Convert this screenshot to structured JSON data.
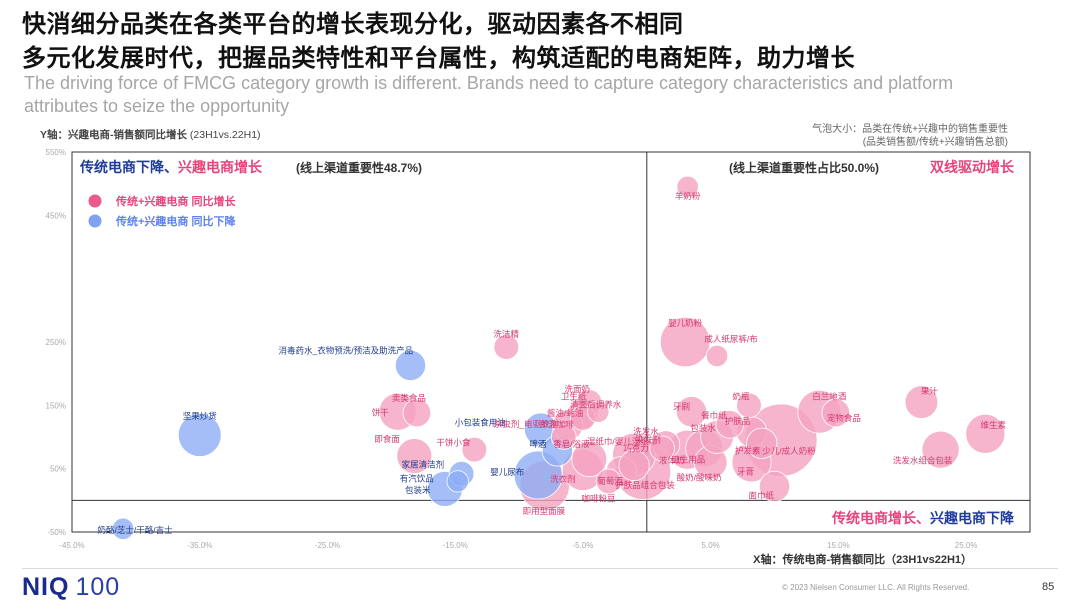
{
  "header": {
    "title_line1": "快消细分品类在各类平台的增长表现分化，驱动因素各不相同",
    "title_line2": "多元化发展时代，把握品类特性和平台属性，构筑适配的电商矩阵，助力增长",
    "subtitle": "The driving force of FMCG category growth is different. Brands need to capture category characteristics and platform attributes to seize the opportunity"
  },
  "chart_notes": {
    "y_axis_bold": "Y轴：兴趣电商-销售额同比增长",
    "y_axis_period": "(23H1vs.22H1)",
    "bubble_size_line1": "气泡大小：品类在传统+兴趣中的销售重要性",
    "bubble_size_line2": "(品类销售额/传统+兴趣销售总额)"
  },
  "footer": {
    "logo_main": "NIQ",
    "logo_num": "100",
    "copyright": "© 2023 Nielsen Consumer LLC. All Rights Reserved.",
    "page_number": "85"
  },
  "colors": {
    "pink": "#f4a3bf",
    "pink_text": "#e8437d",
    "blue": "#8faef5",
    "blue_text": "#1f3c9a",
    "label_pink": "#d6386e",
    "label_blue": "#1f3c88"
  },
  "chart_data": {
    "type": "scatter",
    "title": "",
    "xlabel": "X轴：传统电商-销售额同比（23H1vs22H1）",
    "ylabel": "Y轴：兴趣电商-销售额同比增长（23H1vs.22H1）",
    "xlim": [
      -45,
      30
    ],
    "ylim": [
      -50,
      550
    ],
    "x_ticks": [
      -45,
      -35,
      -25,
      -15,
      -5,
      5,
      15,
      25
    ],
    "x_tick_labels": [
      "-45.0%",
      "-35.0%",
      "-25.0%",
      "-15.0%",
      "-5.0%",
      "5.0%",
      "15.0%",
      "25.0%"
    ],
    "y_ticks": [
      -50,
      50,
      150,
      250,
      450,
      550
    ],
    "y_tick_labels": [
      "-50%",
      "50%",
      "150%",
      "250%",
      "450%",
      "550%"
    ],
    "quadrant_divider": {
      "x": 0,
      "y": 0
    },
    "quadrants": {
      "top_left_blue": "传统电商下降、",
      "top_left_pink": "兴趣电商增长",
      "top_left_note": "(线上渠道重要性48.7%)",
      "top_right_note": "(线上渠道重要性占比50.0%)",
      "top_right_pink": "双线驱动增长",
      "bottom_right_pink": "传统电商增长、",
      "bottom_right_blue": "兴趣电商下降"
    },
    "legend": [
      {
        "name": "传统+兴趣电商 同比增长",
        "color": "pink"
      },
      {
        "name": "传统+兴趣电商 同比下降",
        "color": "blue"
      }
    ],
    "points": [
      {
        "name": "羊奶粉",
        "x": 3.2,
        "y": 495,
        "size": 3,
        "group": "up"
      },
      {
        "name": "婴儿奶粉",
        "x": 3.0,
        "y": 250,
        "size": 16,
        "group": "up"
      },
      {
        "name": "成人纸尿裤/布",
        "x": 5.5,
        "y": 228,
        "size": 3,
        "group": "up"
      },
      {
        "name": "洗洁精",
        "x": -11.0,
        "y": 242,
        "size": 4,
        "group": "up"
      },
      {
        "name": "消毒药水_衣物预洗/预洁及助洗产品",
        "x": -18.5,
        "y": 213,
        "size": 6,
        "group": "down"
      },
      {
        "name": "坚果炒货",
        "x": -35.0,
        "y": 103,
        "size": 12,
        "group": "down"
      },
      {
        "name": "卖类食品",
        "x": -18.0,
        "y": 138,
        "size": 5,
        "group": "up"
      },
      {
        "name": "饼干",
        "x": -19.5,
        "y": 140,
        "size": 9,
        "group": "up"
      },
      {
        "name": "即食面",
        "x": -18.2,
        "y": 70,
        "size": 8,
        "group": "up"
      },
      {
        "name": "干饼小食",
        "x": -13.5,
        "y": 80,
        "size": 4,
        "group": "up"
      },
      {
        "name": "家居清洁剂",
        "x": -14.5,
        "y": 42,
        "size": 4,
        "group": "down"
      },
      {
        "name": "有汽饮品",
        "x": -14.8,
        "y": 30,
        "size": 3,
        "group": "down"
      },
      {
        "name": "包装米",
        "x": -15.8,
        "y": 18,
        "size": 8,
        "group": "down"
      },
      {
        "name": "小包装食用油",
        "x": -8.3,
        "y": 112,
        "size": 7,
        "group": "down"
      },
      {
        "name": "啤酒",
        "x": -7.0,
        "y": 78,
        "size": 6,
        "group": "down"
      },
      {
        "name": "婴儿尿布",
        "x": -8.5,
        "y": 40,
        "size": 15,
        "group": "down"
      },
      {
        "name": "即用型面膜",
        "x": -8.0,
        "y": 23,
        "size": 16,
        "group": "up"
      },
      {
        "name": "洗面奶",
        "x": -4.5,
        "y": 155,
        "size": 4,
        "group": "up"
      },
      {
        "name": "清面后调养水",
        "x": -3.8,
        "y": 140,
        "size": 3,
        "group": "up"
      },
      {
        "name": "酱油/蚝油",
        "x": -5.0,
        "y": 130,
        "size": 4,
        "group": "up"
      },
      {
        "name": "卫生纸",
        "x": -5.0,
        "y": 137,
        "size": 6,
        "group": "up"
      },
      {
        "name": "杀虫剂_电驱蚊剂",
        "x": -6.5,
        "y": 100,
        "size": 4,
        "group": "up"
      },
      {
        "name": "即溶咖啡",
        "x": -6.2,
        "y": 118,
        "size": 6,
        "group": "up"
      },
      {
        "name": "香皂/浴液",
        "x": -4.5,
        "y": 65,
        "size": 8,
        "group": "up"
      },
      {
        "name": "洗衣剂",
        "x": -5.0,
        "y": 48,
        "size": 11,
        "group": "up"
      },
      {
        "name": "咖啡粉豆",
        "x": -3.0,
        "y": 30,
        "size": 4,
        "group": "up"
      },
      {
        "name": "葡萄酒",
        "x": -2.0,
        "y": 45,
        "size": 6,
        "group": "up"
      },
      {
        "name": "湿纸巾/婴儿湿纸巾",
        "x": -1.0,
        "y": 72,
        "size": 12,
        "group": "up"
      },
      {
        "name": "巧克力",
        "x": -1.0,
        "y": 55,
        "size": 6,
        "group": "up"
      },
      {
        "name": "护肤品组合包装",
        "x": -0.3,
        "y": 45,
        "size": 20,
        "group": "up"
      },
      {
        "name": "洗发水",
        "x": 1.5,
        "y": 88,
        "size": 5,
        "group": "up"
      },
      {
        "name": "染发剂",
        "x": 1.2,
        "y": 82,
        "size": 4,
        "group": "up"
      },
      {
        "name": "牙刷",
        "x": 3.5,
        "y": 140,
        "size": 6,
        "group": "up"
      },
      {
        "name": "液体奶",
        "x": 3.2,
        "y": 80,
        "size": 10,
        "group": "up"
      },
      {
        "name": "卫生用品",
        "x": 4.5,
        "y": 82,
        "size": 9,
        "group": "up"
      },
      {
        "name": "酸奶/酸味奶",
        "x": 5.0,
        "y": 60,
        "size": 7,
        "group": "up"
      },
      {
        "name": "包装水",
        "x": 5.5,
        "y": 100,
        "size": 7,
        "group": "up"
      },
      {
        "name": "餐巾纸",
        "x": 6.5,
        "y": 120,
        "size": 5,
        "group": "up"
      },
      {
        "name": "奶瓶",
        "x": 8.0,
        "y": 150,
        "size": 4,
        "group": "up"
      },
      {
        "name": "护肤品",
        "x": 8.2,
        "y": 108,
        "size": 6,
        "group": "up"
      },
      {
        "name": "护发素",
        "x": 9.0,
        "y": 90,
        "size": 6,
        "group": "up"
      },
      {
        "name": "牙膏",
        "x": 8.2,
        "y": 60,
        "size": 10,
        "group": "up"
      },
      {
        "name": "少儿/成人奶粉",
        "x": 10.5,
        "y": 95,
        "size": 34,
        "group": "up"
      },
      {
        "name": "白兰地酒",
        "x": 13.5,
        "y": 140,
        "size": 12,
        "group": "up"
      },
      {
        "name": "宠物食品",
        "x": 14.8,
        "y": 138,
        "size": 5,
        "group": "up"
      },
      {
        "name": "果汁",
        "x": 21.5,
        "y": 155,
        "size": 7,
        "group": "up"
      },
      {
        "name": "维生素",
        "x": 26.5,
        "y": 105,
        "size": 10,
        "group": "up"
      },
      {
        "name": "洗发水组合包装",
        "x": 23.0,
        "y": 80,
        "size": 9,
        "group": "up"
      },
      {
        "name": "奶酪/芝士/干酪/吉士",
        "x": -41.0,
        "y": -45,
        "size": 3,
        "group": "down"
      },
      {
        "name": "面巾纸",
        "x": 10.0,
        "y": 22,
        "size": 6,
        "group": "up"
      }
    ]
  }
}
